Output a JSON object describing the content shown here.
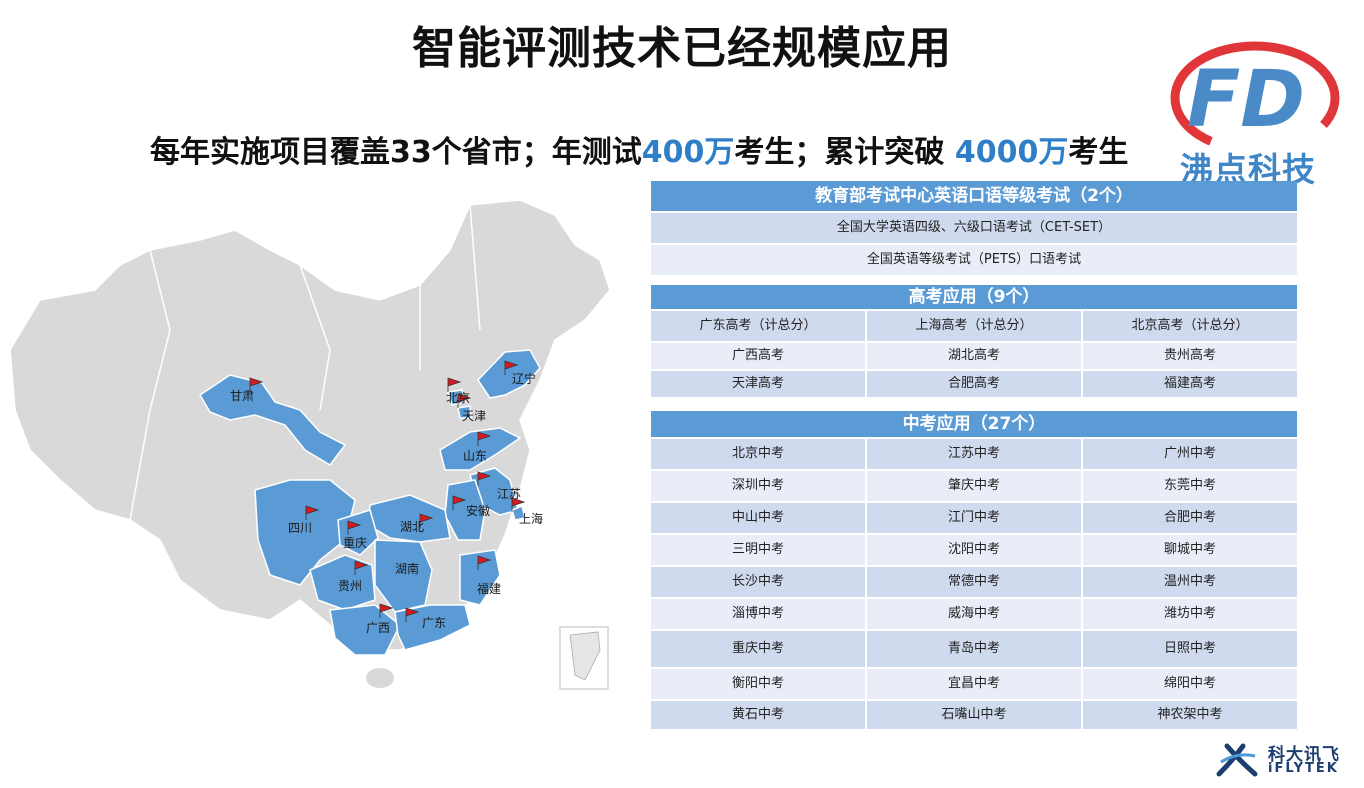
{
  "title": "智能评测技术已经规模应用",
  "subtitle": {
    "part1": "每年实施项目覆盖33个省市；年测试",
    "num1": "400万",
    "part2": "考生；累计突破 ",
    "num2": "4000万",
    "part3": "考生"
  },
  "logo": {
    "text": "沸点科技",
    "mark": "FD"
  },
  "map": {
    "labels": [
      "甘肃",
      "北京",
      "天津",
      "辽宁",
      "山东",
      "江苏",
      "上海",
      "安徽",
      "湖北",
      "四川",
      "重庆",
      "湖南",
      "贵州",
      "福建",
      "广西",
      "广东"
    ],
    "highlight_color": "#5b9bd5",
    "base_color": "#d9d9d9",
    "flag_color": "#d71920"
  },
  "section1": {
    "header": "教育部考试中心英语口语等级考试（2个）",
    "rows": [
      "全国大学英语四级、六级口语考试（CET-SET）",
      "全国英语等级考试（PETS）口语考试"
    ]
  },
  "section2": {
    "header": "高考应用（9个）",
    "rows": [
      [
        "广东高考（计总分）",
        "上海高考（计总分）",
        "北京高考（计总分）"
      ],
      [
        "广西高考",
        "湖北高考",
        "贵州高考"
      ],
      [
        "天津高考",
        "合肥高考",
        "福建高考"
      ]
    ]
  },
  "section3": {
    "header": "中考应用（27个）",
    "rows": [
      [
        "北京中考",
        "江苏中考",
        "广州中考"
      ],
      [
        "深圳中考",
        "肇庆中考",
        "东莞中考"
      ],
      [
        "中山中考",
        "江门中考",
        "合肥中考"
      ],
      [
        "三明中考",
        "沈阳中考",
        "聊城中考"
      ],
      [
        "长沙中考",
        "常德中考",
        "温州中考"
      ],
      [
        "淄博中考",
        "威海中考",
        "潍坊中考"
      ],
      [
        "重庆中考",
        "青岛中考",
        "日照中考"
      ],
      [
        "衡阳中考",
        "宜昌中考",
        "绵阳中考"
      ],
      [
        "黄石中考",
        "石嘴山中考",
        "神农架中考"
      ]
    ]
  },
  "iflytek": {
    "cn": "科大讯飞",
    "en": "iFLYTEK"
  }
}
